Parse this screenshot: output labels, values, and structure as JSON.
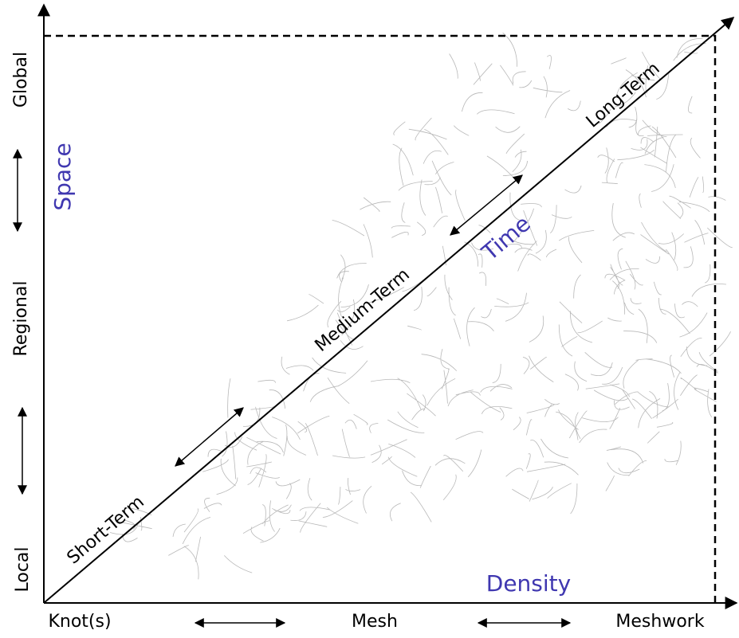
{
  "space_axis": {
    "title": "Space",
    "labels": [
      "Global",
      "Regional",
      "Local"
    ]
  },
  "density_axis": {
    "title": "Density",
    "labels": [
      "Knot(s)",
      "Mesh",
      "Meshwork"
    ]
  },
  "time_axis": {
    "title": "Time",
    "labels": [
      "Short-Term",
      "Medium-Term",
      "Long-Term"
    ]
  }
}
